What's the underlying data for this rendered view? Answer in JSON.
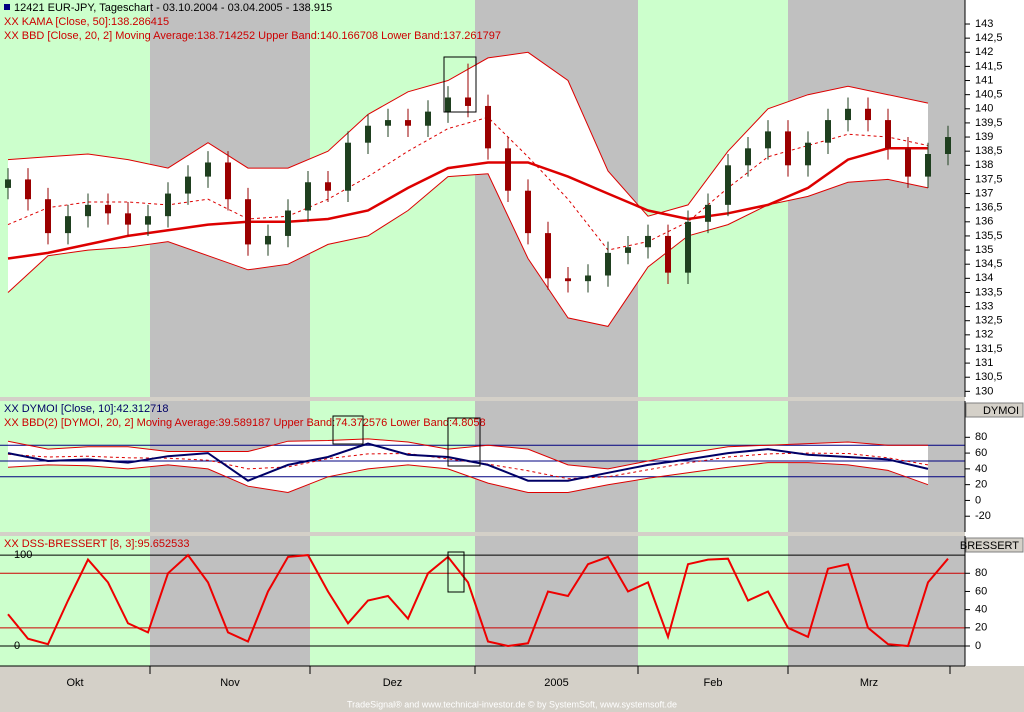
{
  "x_axis": {
    "xlim": [
      -0.4,
      47.85
    ],
    "xticks": [
      7.1,
      15.1,
      23.35,
      31.5,
      39,
      47.1
    ],
    "months": [
      "Okt",
      "Nov",
      "Dez",
      "2005",
      "Feb",
      "Mrz"
    ],
    "shade_colors": [
      "#ccffcc",
      "#c0c0c0"
    ]
  },
  "footer": "TradeSignal® and www.technical-investor.de © by SystemSoft, www.systemsoft.de",
  "chart_data": [
    {
      "type": "candlestick",
      "title": "12421  EUR-JPY, Tageschart - 03.10.2004 - 03.04.2005 - 138.915",
      "annotations": [
        {
          "text": "XX KAMA [Close, 50]:138.286415",
          "color": "#cc0000"
        },
        {
          "text": "XX BBD [Close, 20, 2] Moving Average:138.714252 Upper Band:140.166708 Lower Band:137.261797",
          "color": "#cc0000"
        }
      ],
      "ylim": [
        129.8,
        143.85
      ],
      "yticks": [
        130,
        {
          "value": 130.5,
          "label": "130,5"
        },
        131,
        {
          "value": 131.5,
          "label": "131,5"
        },
        132,
        {
          "value": 132.5,
          "label": "132,5"
        },
        133,
        {
          "value": 133.5,
          "label": "133,5"
        },
        134,
        {
          "value": 134.5,
          "label": "134,5"
        },
        135,
        {
          "value": 135.5,
          "label": "135,5"
        },
        136,
        {
          "value": 136.5,
          "label": "136,5"
        },
        137,
        {
          "value": 137.5,
          "label": "137,5"
        },
        138,
        {
          "value": 138.5,
          "label": "138,5"
        },
        139,
        {
          "value": 139.5,
          "label": "139,5"
        },
        140,
        {
          "value": 140.5,
          "label": "140,5"
        },
        141,
        {
          "value": 141.5,
          "label": "141,5"
        },
        142,
        {
          "value": 142.5,
          "label": "142,5"
        },
        143
      ],
      "band_fill": "#ffffff",
      "candles": {
        "up_color": "#1f3f1f",
        "down_color": "#9b0000",
        "x": [
          0,
          1,
          2,
          3,
          4,
          5,
          6,
          7,
          8,
          9,
          10,
          11,
          12,
          13,
          14,
          15,
          16,
          17,
          18,
          19,
          20,
          21,
          22,
          23,
          24,
          25,
          26,
          27,
          28,
          29,
          30,
          31,
          32,
          33,
          34,
          35,
          36,
          37,
          38,
          39,
          40,
          41,
          42,
          43,
          44,
          45,
          46,
          47
        ],
        "open": [
          137.2,
          137.5,
          136.8,
          135.6,
          136.2,
          136.6,
          136.3,
          135.9,
          136.2,
          137.0,
          137.6,
          138.1,
          136.8,
          135.2,
          135.5,
          136.4,
          137.4,
          137.1,
          138.8,
          139.4,
          139.6,
          139.4,
          139.9,
          140.4,
          140.1,
          138.6,
          137.1,
          135.6,
          134.0,
          133.9,
          134.1,
          134.9,
          135.1,
          135.5,
          134.2,
          136.0,
          136.6,
          138.0,
          138.6,
          139.2,
          138.0,
          138.8,
          139.6,
          140.0,
          139.6,
          138.6,
          137.6,
          138.4
        ],
        "high": [
          137.9,
          137.9,
          137.2,
          136.6,
          137.0,
          137.0,
          136.7,
          136.6,
          137.4,
          138.0,
          138.5,
          138.5,
          137.2,
          135.9,
          136.8,
          137.8,
          137.8,
          139.2,
          139.8,
          140.0,
          140.0,
          140.3,
          140.8,
          141.6,
          140.5,
          139.0,
          137.5,
          136.0,
          134.4,
          134.5,
          135.3,
          135.5,
          135.9,
          135.9,
          136.4,
          137.0,
          138.4,
          139.0,
          139.6,
          139.6,
          139.2,
          140.0,
          140.4,
          140.4,
          140.0,
          139.0,
          138.8,
          139.4
        ],
        "low": [
          136.8,
          136.4,
          135.2,
          135.2,
          135.8,
          135.9,
          135.5,
          135.5,
          135.8,
          136.6,
          137.2,
          136.4,
          134.8,
          134.8,
          135.1,
          136.0,
          136.7,
          136.7,
          138.4,
          139.0,
          139.0,
          139.0,
          139.5,
          139.7,
          138.2,
          136.7,
          135.2,
          133.6,
          133.5,
          133.5,
          133.7,
          134.5,
          134.7,
          133.8,
          133.8,
          135.6,
          136.2,
          137.6,
          138.2,
          137.6,
          137.6,
          138.4,
          139.2,
          139.2,
          138.2,
          137.2,
          137.2,
          138.0
        ],
        "close": [
          137.5,
          136.8,
          135.6,
          136.2,
          136.6,
          136.3,
          135.9,
          136.2,
          137.0,
          137.6,
          138.1,
          136.8,
          135.2,
          135.5,
          136.4,
          137.4,
          137.1,
          138.8,
          139.4,
          139.6,
          139.4,
          139.9,
          140.4,
          140.1,
          138.6,
          137.1,
          135.6,
          134.0,
          133.9,
          134.1,
          134.9,
          135.1,
          135.5,
          134.2,
          136.0,
          136.6,
          138.0,
          138.6,
          139.2,
          138.0,
          138.8,
          139.6,
          140.0,
          139.6,
          138.6,
          137.6,
          138.4,
          139.0
        ]
      },
      "series": [
        {
          "band": "upper",
          "color": "#dd0000",
          "width": 1,
          "x": [
            0,
            2,
            4,
            6,
            8,
            10,
            12,
            14,
            16,
            18,
            20,
            22,
            24,
            26,
            28,
            30,
            32,
            34,
            36,
            38,
            40,
            42,
            44,
            46
          ],
          "values": [
            138.2,
            138.3,
            138.4,
            138.2,
            137.9,
            138.8,
            137.9,
            137.9,
            138.5,
            139.8,
            140.6,
            141.0,
            141.8,
            142.0,
            141.0,
            137.8,
            136.2,
            136.6,
            138.5,
            140.0,
            140.5,
            140.8,
            140.5,
            140.2
          ]
        },
        {
          "band": "lower",
          "color": "#dd0000",
          "width": 1,
          "x": [
            0,
            2,
            4,
            6,
            8,
            10,
            12,
            14,
            16,
            18,
            20,
            22,
            24,
            26,
            28,
            30,
            32,
            34,
            36,
            38,
            40,
            42,
            44,
            46
          ],
          "values": [
            133.5,
            134.8,
            135.0,
            135.1,
            135.3,
            134.8,
            134.3,
            134.5,
            135.2,
            135.5,
            136.4,
            137.6,
            137.7,
            134.7,
            132.6,
            132.3,
            134.4,
            135.5,
            135.9,
            136.6,
            136.9,
            137.4,
            137.5,
            137.2
          ]
        },
        {
          "color": "#dd0000",
          "width": 1,
          "dash": true,
          "x": [
            0,
            2,
            4,
            6,
            8,
            10,
            12,
            14,
            16,
            18,
            20,
            22,
            24,
            26,
            28,
            30,
            32,
            34,
            36,
            38,
            40,
            42,
            44,
            46
          ],
          "values": [
            135.9,
            136.5,
            136.7,
            136.7,
            136.6,
            136.8,
            136.1,
            136.2,
            136.8,
            137.6,
            138.5,
            139.3,
            139.7,
            138.3,
            136.8,
            135.0,
            135.3,
            136.0,
            137.2,
            138.3,
            138.7,
            139.1,
            139.0,
            138.7
          ]
        },
        {
          "color": "#dd0000",
          "width": 2.5,
          "x": [
            0,
            2,
            4,
            6,
            8,
            10,
            12,
            14,
            16,
            18,
            20,
            22,
            24,
            26,
            28,
            30,
            32,
            34,
            36,
            38,
            40,
            42,
            44,
            46
          ],
          "values": [
            134.7,
            134.9,
            135.2,
            135.5,
            135.7,
            135.9,
            136.0,
            136.0,
            136.1,
            136.4,
            137.2,
            137.9,
            138.1,
            138.1,
            137.6,
            137.0,
            136.4,
            136.1,
            136.3,
            136.6,
            137.2,
            138.2,
            138.6,
            138.6
          ]
        }
      ]
    },
    {
      "type": "line",
      "label": "DYMOI",
      "annotations": [
        {
          "text": "XX DYMOI [Close, 10]:42.312718",
          "color": "#000066"
        },
        {
          "text": "XX BBD(2) [DYMOI, 20, 2] Moving Average:39.589187 Upper Band:74.372576 Lower Band:4.8058",
          "color": "#cc0000"
        }
      ],
      "ylim": [
        -40,
        126
      ],
      "yticks": [
        -20,
        0,
        20,
        40,
        60,
        80
      ],
      "hlines": [
        {
          "value": 70,
          "color": "#000080"
        },
        {
          "value": 50,
          "color": "#000080"
        },
        {
          "value": 30,
          "color": "#000080"
        }
      ],
      "band_fill": "#ffffff",
      "series": [
        {
          "band": "upper",
          "color": "#dd0000",
          "width": 1,
          "x": [
            0,
            2,
            4,
            6,
            8,
            10,
            12,
            14,
            16,
            18,
            20,
            22,
            24,
            26,
            28,
            30,
            32,
            34,
            36,
            38,
            40,
            42,
            44,
            46
          ],
          "values": [
            75,
            65,
            68,
            68,
            62,
            62,
            62,
            75,
            76,
            78,
            74,
            65,
            70,
            65,
            45,
            40,
            50,
            60,
            68,
            70,
            72,
            74,
            70,
            70
          ]
        },
        {
          "band": "lower",
          "color": "#dd0000",
          "width": 1,
          "x": [
            0,
            2,
            4,
            6,
            8,
            10,
            12,
            14,
            16,
            18,
            20,
            22,
            24,
            26,
            28,
            30,
            32,
            34,
            36,
            38,
            40,
            42,
            44,
            46
          ],
          "values": [
            42,
            45,
            44,
            40,
            45,
            40,
            18,
            10,
            30,
            40,
            45,
            40,
            22,
            10,
            10,
            20,
            28,
            35,
            42,
            48,
            48,
            45,
            38,
            20
          ]
        },
        {
          "color": "#dd0000",
          "width": 1,
          "dash": true,
          "x": [
            0,
            2,
            4,
            6,
            8,
            10,
            12,
            14,
            16,
            18,
            20,
            22,
            24,
            26,
            28,
            30,
            32,
            34,
            36,
            38,
            40,
            42,
            44,
            46
          ],
          "values": [
            58.5,
            55,
            56,
            54,
            53.5,
            51,
            40,
            42.5,
            53,
            59,
            59.5,
            52.5,
            46,
            37.5,
            27.5,
            30,
            39,
            47.5,
            55,
            59,
            60,
            59.5,
            54,
            45
          ]
        },
        {
          "color": "#000066",
          "width": 2,
          "x": [
            0,
            2,
            4,
            6,
            8,
            10,
            12,
            14,
            16,
            18,
            20,
            22,
            24,
            26,
            28,
            30,
            32,
            34,
            36,
            38,
            40,
            42,
            44,
            46
          ],
          "values": [
            60,
            50,
            52,
            48,
            56,
            60,
            25,
            45,
            55,
            72,
            58,
            55,
            45,
            25,
            25,
            35,
            45,
            52,
            60,
            65,
            58,
            55,
            52,
            40
          ]
        }
      ]
    },
    {
      "type": "line",
      "label": "BRESSERT",
      "annotations": [
        {
          "text": "XX DSS-BRESSERT [8, 3]:95.652533",
          "color": "#cc0000"
        }
      ],
      "ylim": [
        -22,
        121
      ],
      "yticks": [
        0,
        20,
        40,
        60,
        80
      ],
      "yticks_left": [
        0,
        100
      ],
      "hlines": [
        {
          "value": 100,
          "color": "#000000"
        },
        {
          "value": 80,
          "color": "#cc0000"
        },
        {
          "value": 20,
          "color": "#cc0000"
        },
        {
          "value": 0,
          "color": "#000000"
        }
      ],
      "series": [
        {
          "color": "#ee0000",
          "width": 2,
          "x": [
            0,
            1,
            2,
            3,
            4,
            5,
            6,
            7,
            8,
            9,
            10,
            11,
            12,
            13,
            14,
            15,
            16,
            17,
            18,
            19,
            20,
            21,
            22,
            23,
            24,
            25,
            26,
            27,
            28,
            29,
            30,
            31,
            32,
            33,
            34,
            35,
            36,
            37,
            38,
            39,
            40,
            41,
            42,
            43,
            44,
            45,
            46,
            47
          ],
          "values": [
            35,
            8,
            2,
            50,
            95,
            70,
            25,
            15,
            80,
            100,
            70,
            15,
            5,
            60,
            98,
            100,
            60,
            25,
            50,
            55,
            30,
            80,
            98,
            70,
            5,
            0,
            3,
            60,
            55,
            90,
            98,
            60,
            70,
            10,
            90,
            95,
            96,
            50,
            60,
            20,
            10,
            85,
            90,
            20,
            2,
            0,
            70,
            96
          ]
        }
      ]
    }
  ]
}
